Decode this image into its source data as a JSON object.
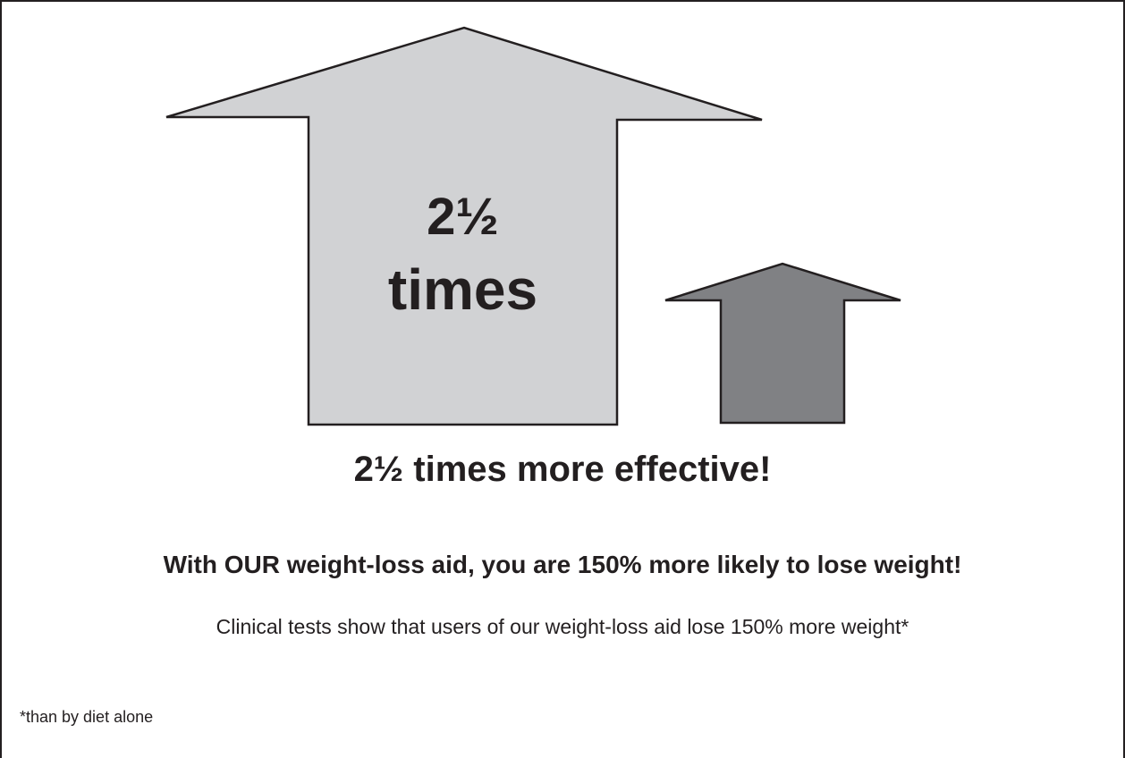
{
  "big_arrow": {
    "label_line1": "2½",
    "label_line2": "times",
    "fill": "#d1d2d4",
    "stroke": "#231f20"
  },
  "small_arrow": {
    "fill": "#808184",
    "stroke": "#231f20"
  },
  "headline": "2½ times more effective!",
  "claim": "With OUR weight-loss aid, you are 150% more likely to lose weight!",
  "detail": "Clinical tests show that users of our weight-loss aid lose 150% more weight*",
  "footnote": "*than by diet alone",
  "colors": {
    "text": "#231f20",
    "background": "#ffffff"
  }
}
